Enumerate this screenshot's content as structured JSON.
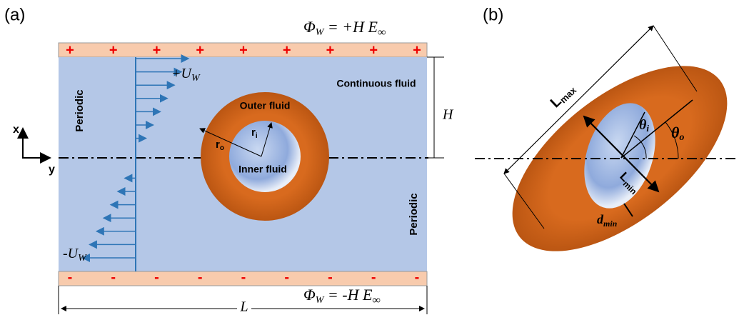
{
  "panel_a": {
    "label": "(a)",
    "top_potential": {
      "symbol": "Φ",
      "sub": "W",
      "rest": " = +H E",
      "sub2": "∞"
    },
    "bottom_potential": {
      "symbol": "Φ",
      "sub": "W",
      "rest": " = -H E",
      "sub2": "∞"
    },
    "top_signs": [
      "+",
      "+",
      "+",
      "+",
      "+",
      "+",
      "+",
      "+",
      "+"
    ],
    "bottom_signs": [
      "-",
      "-",
      "-",
      "-",
      "-",
      "-",
      "-",
      "-",
      "-"
    ],
    "top_velocity": {
      "main": "+U",
      "sub": "W"
    },
    "bottom_velocity": {
      "main": "-U",
      "sub": "W"
    },
    "periodic_left": "Periodic",
    "periodic_right": "Periodic",
    "continuous": "Continuous fluid",
    "outer": "Outer fluid",
    "inner": "Inner fluid",
    "r_outer": {
      "main": "r",
      "sub": "o"
    },
    "r_inner": {
      "main": "r",
      "sub": "i"
    },
    "height": "H",
    "length": "L",
    "x_axis": "x",
    "y_axis": "y"
  },
  "panel_b": {
    "label": "(b)",
    "l_max": {
      "main": "L",
      "sub": "max"
    },
    "l_min": {
      "main": "L",
      "sub": "min"
    },
    "theta_i": {
      "main": "θ",
      "sub": "i"
    },
    "theta_o": {
      "main": "θ",
      "sub": "o"
    },
    "d_min": {
      "main": "d",
      "sub": "min"
    }
  }
}
